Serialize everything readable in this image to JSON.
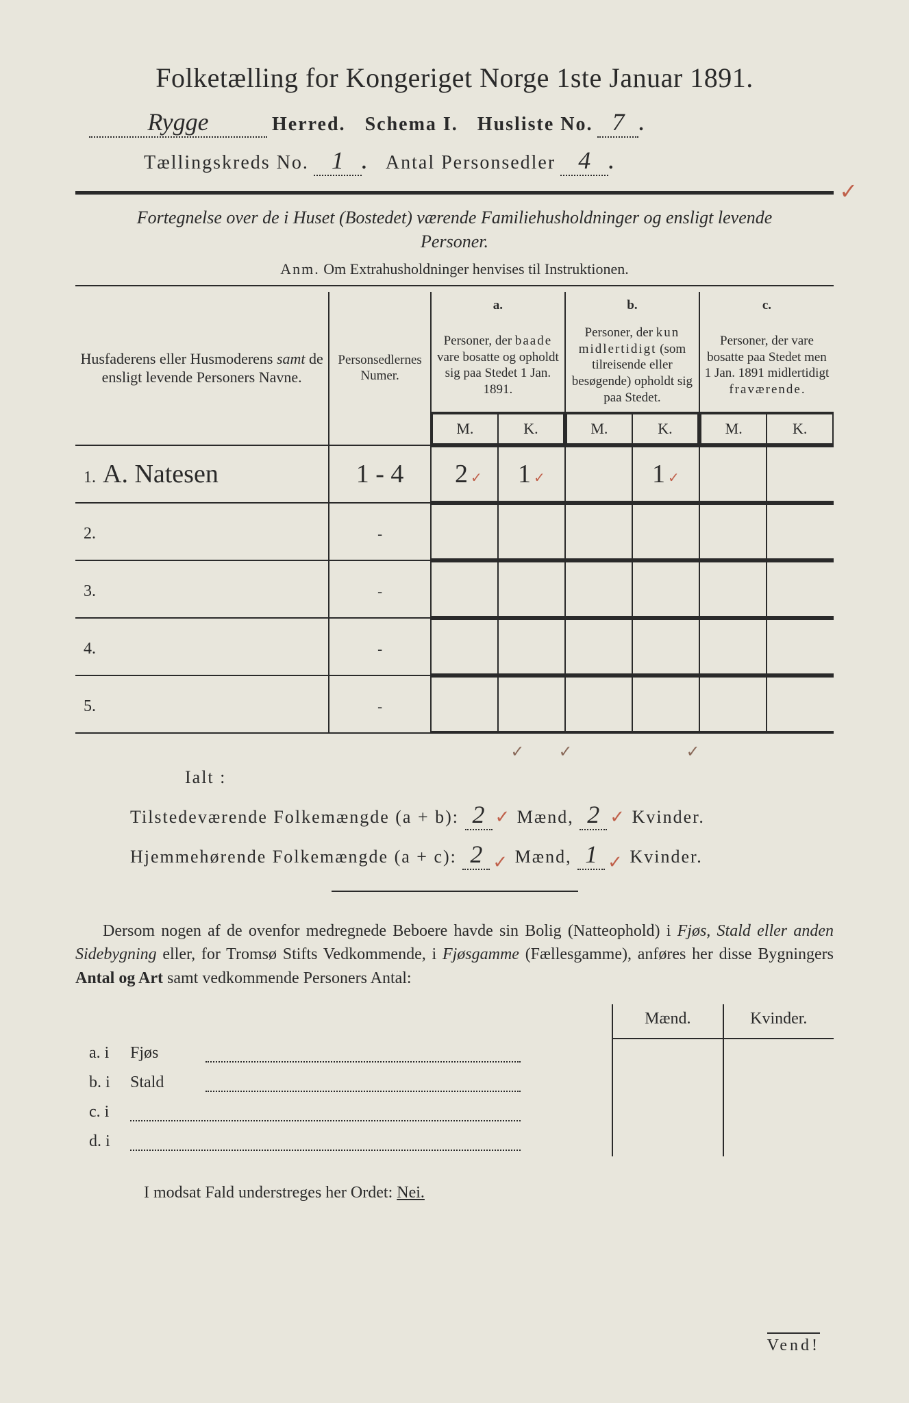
{
  "title": "Folketælling for Kongeriget Norge 1ste Januar 1891.",
  "line1": {
    "herred_value": "Rygge",
    "herred_label": "Herred.",
    "schema_label": "Schema I.",
    "husliste_label": "Husliste No.",
    "husliste_value": "7"
  },
  "line2": {
    "kreds_label": "Tællingskreds No.",
    "kreds_value": "1",
    "sedler_label": "Antal Personsedler",
    "sedler_value": "4"
  },
  "subtitle": "Fortegnelse over de i Huset (Bostedet) værende Familiehusholdninger og ensligt levende Personer.",
  "anm": "Anm. Om Extrahusholdninger henvises til Instruktionen.",
  "headers": {
    "names": "Husfaderens eller Husmoderens samt de ensligt levende Personers Navne.",
    "numer": "Personsedlernes Numer.",
    "a_letter": "a.",
    "a": "Personer, der baade vare bosatte og opholdt sig paa Stedet 1 Jan. 1891.",
    "b_letter": "b.",
    "b": "Personer, der kun midlertidigt (som tilreisende eller besøgende) opholdt sig paa Stedet.",
    "c_letter": "c.",
    "c": "Personer, der vare bosatte paa Stedet men 1 Jan. 1891 midlertidigt fraværende.",
    "m": "M.",
    "k": "K."
  },
  "rows": [
    {
      "num": "1.",
      "name": "A. Natesen",
      "numer": "1 - 4",
      "a_m": "2",
      "a_k": "1",
      "b_m": "",
      "b_k": "1",
      "c_m": "",
      "c_k": ""
    },
    {
      "num": "2.",
      "name": "",
      "numer": "-",
      "a_m": "",
      "a_k": "",
      "b_m": "",
      "b_k": "",
      "c_m": "",
      "c_k": ""
    },
    {
      "num": "3.",
      "name": "",
      "numer": "-",
      "a_m": "",
      "a_k": "",
      "b_m": "",
      "b_k": "",
      "c_m": "",
      "c_k": ""
    },
    {
      "num": "4.",
      "name": "",
      "numer": "-",
      "a_m": "",
      "a_k": "",
      "b_m": "",
      "b_k": "",
      "c_m": "",
      "c_k": ""
    },
    {
      "num": "5.",
      "name": "",
      "numer": "-",
      "a_m": "",
      "a_k": "",
      "b_m": "",
      "b_k": "",
      "c_m": "",
      "c_k": ""
    }
  ],
  "ialt": "Ialt :",
  "summary1": {
    "label": "Tilstedeværende Folkemængde (a + b):",
    "maend": "2",
    "maend_label": "Mænd,",
    "kvinder": "2",
    "kvinder_label": "Kvinder."
  },
  "summary2": {
    "label": "Hjemmehørende Folkemængde (a + c):",
    "maend": "2",
    "maend_label": "Mænd,",
    "kvinder": "1",
    "kvinder_label": "Kvinder."
  },
  "paragraph": "Dersom nogen af de ovenfor medregnede Beboere havde sin Bolig (Natteophold) i Fjøs, Stald eller anden Sidebygning eller, for Tromsø Stifts Vedkommende, i Fjøsgamme (Fællesgamme), anføres her disse Bygningers Antal og Art samt vedkommende Personers Antal:",
  "lower": {
    "maend": "Mænd.",
    "kvinder": "Kvinder.",
    "a": "a.  i",
    "a_label": "Fjøs",
    "b": "b.  i",
    "b_label": "Stald",
    "c": "c.  i",
    "d": "d.  i"
  },
  "footer": "I modsat Fald understreges her Ordet:",
  "nei": "Nei.",
  "vend": "Vend!",
  "colors": {
    "bg": "#e8e6dc",
    "text": "#2a2a2a",
    "red_check": "#c0604a"
  }
}
